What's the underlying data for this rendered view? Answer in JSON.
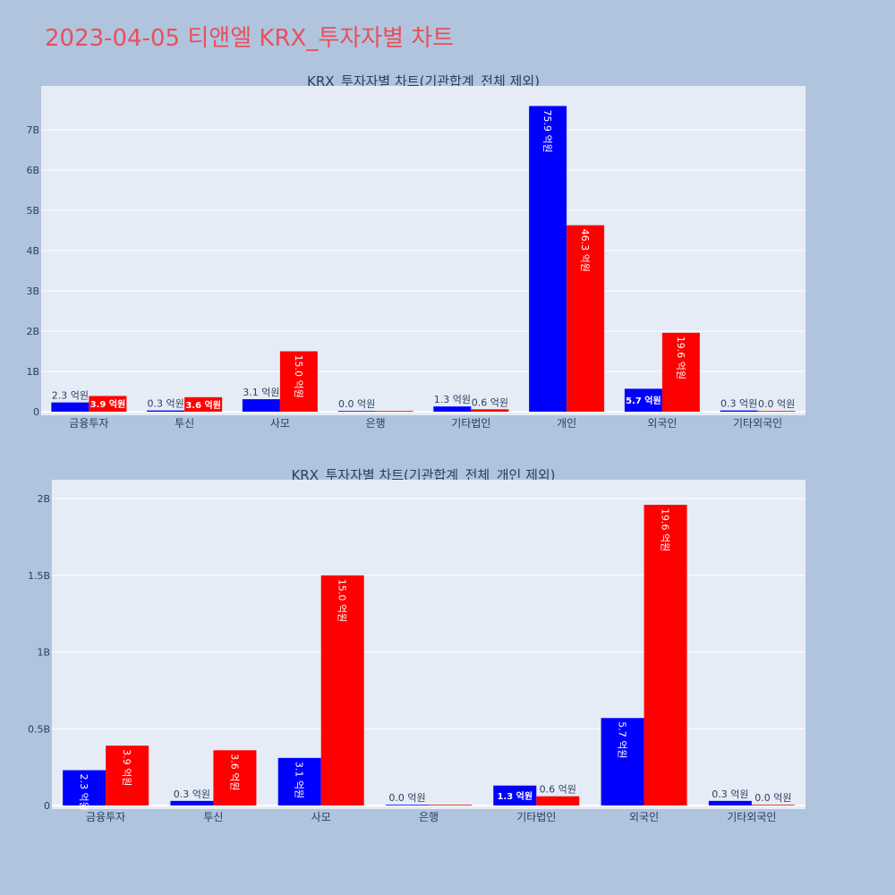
{
  "main_title": "2023-04-05 티앤엘 KRX_투자자별 차트",
  "colors": {
    "page_bg": "#b0c4de",
    "plot_bg": "#e5ecf6",
    "series_a": "#0000ff",
    "series_b": "#ff0000",
    "title": "#e8505b",
    "axis_text": "#2a3f5f",
    "grid": "#ffffff"
  },
  "chart_data": [
    {
      "type": "bar",
      "title": "KRX_투자자별 차트(기관합계_전체 제외)",
      "categories": [
        "금융투자",
        "투신",
        "사모",
        "은행",
        "기타법인",
        "개인",
        "외국인",
        "기타외국인"
      ],
      "ylim": [
        0,
        8000000000
      ],
      "yticks": [
        0,
        1000000000,
        2000000000,
        3000000000,
        4000000000,
        5000000000,
        6000000000,
        7000000000
      ],
      "ytick_labels": [
        "0",
        "1B",
        "2B",
        "3B",
        "4B",
        "5B",
        "6B",
        "7B"
      ],
      "grid": true,
      "series": [
        {
          "values": [
            230000000,
            30000000,
            310000000,
            0,
            130000000,
            7590000000,
            570000000,
            30000000
          ],
          "labels": [
            "2.3 억원",
            "0.3 억원",
            "3.1 억원",
            "0.0 억원",
            "1.3 억원",
            "75.9 억원",
            "5.7 억원",
            "0.3 억원"
          ]
        },
        {
          "values": [
            390000000,
            360000000,
            1500000000,
            0,
            60000000,
            4630000000,
            1960000000,
            0
          ],
          "labels": [
            "3.9 억원",
            "3.6 억원",
            "15.0 억원",
            "",
            "0.6 억원",
            "46.3 억원",
            "19.6 억원",
            "0.0 억원"
          ]
        }
      ]
    },
    {
      "type": "bar",
      "title": "KRX_투자자별 차트(기관합계_전체_개인 제외)",
      "categories": [
        "금융투자",
        "투신",
        "사모",
        "은행",
        "기타법인",
        "외국인",
        "기타외국인"
      ],
      "ylim": [
        0,
        2100000000
      ],
      "yticks": [
        0,
        500000000,
        1000000000,
        1500000000,
        2000000000
      ],
      "ytick_labels": [
        "0",
        "0.5B",
        "1B",
        "1.5B",
        "2B"
      ],
      "grid": true,
      "series": [
        {
          "values": [
            230000000,
            30000000,
            310000000,
            0,
            130000000,
            570000000,
            30000000
          ],
          "labels": [
            "2.3 억원",
            "0.3 억원",
            "3.1 억원",
            "0.0 억원",
            "1.3 억원",
            "5.7 억원",
            "0.3 억원"
          ]
        },
        {
          "values": [
            390000000,
            360000000,
            1500000000,
            0,
            60000000,
            1960000000,
            0
          ],
          "labels": [
            "3.9 억원",
            "3.6 억원",
            "15.0 억원",
            "",
            "0.6 억원",
            "19.6 억원",
            "0.0 억원"
          ]
        }
      ]
    }
  ]
}
